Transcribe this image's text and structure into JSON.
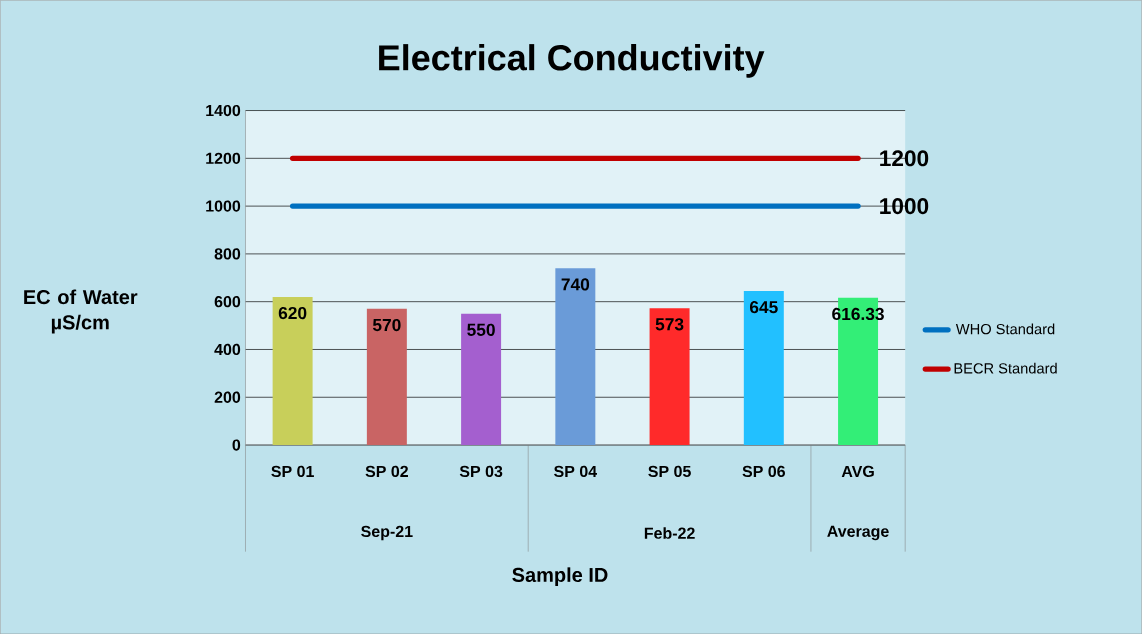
{
  "chart_data": {
    "type": "bar",
    "title": "Electrical Conductivity",
    "xlabel": "Sample ID",
    "ylabel": "EC of Water µS/cm",
    "categories": [
      "SP 01",
      "SP 02",
      "SP 03",
      "SP 04",
      "SP 05",
      "SP 06",
      "AVG"
    ],
    "series": [
      {
        "values": [
          620,
          570,
          550,
          740,
          573,
          645,
          616.33
        ],
        "colors": [
          "#c8cf5a",
          "#c96464",
          "#a45fcf",
          "#6a9bd8",
          "#ff2a2a",
          "#22c0ff",
          "#33ee77"
        ],
        "value_labels": [
          "620",
          "570",
          "550",
          "740",
          "573",
          "645",
          "616.33"
        ]
      },
      {
        "type": "line",
        "name": "WHO Standard",
        "color": "#0070c0",
        "values": [
          1000,
          1000,
          1000,
          1000,
          1000,
          1000,
          1000
        ],
        "value_labels": [
          null,
          null,
          null,
          null,
          null,
          null,
          "1000"
        ]
      },
      {
        "type": "line",
        "name": "BECR Standard",
        "color": "#c00000",
        "values": [
          1200,
          1200,
          1200,
          1200,
          1200,
          1200,
          1200
        ],
        "value_labels": [
          null,
          null,
          null,
          null,
          null,
          null,
          "1200"
        ]
      }
    ],
    "annotations": [
      "Sep-21",
      "Feb-22",
      "Average"
    ],
    "ylim": [
      0,
      1400
    ],
    "yticks": [
      0,
      200,
      400,
      600,
      800,
      1000,
      1200,
      1400
    ],
    "grid": "y",
    "legend": "right"
  }
}
